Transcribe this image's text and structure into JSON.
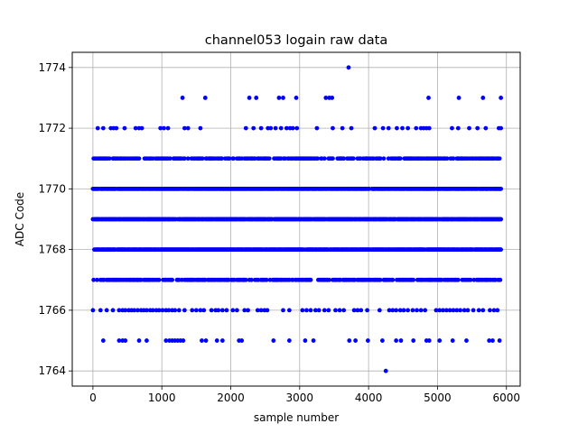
{
  "chart_data": {
    "type": "scatter",
    "title": "channel053 logain raw data",
    "xlabel": "sample number",
    "ylabel": "ADC Code",
    "xlim": [
      -300,
      6200
    ],
    "ylim": [
      1763.5,
      1774.5
    ],
    "xticks": [
      0,
      1000,
      2000,
      3000,
      4000,
      5000,
      6000
    ],
    "yticks": [
      1764,
      1766,
      1768,
      1770,
      1772,
      1774
    ],
    "grid": true,
    "marker_color": "#0000ff",
    "sample_count": 5920,
    "series": [
      {
        "levels": [
          {
            "value": 1767,
            "x": []
          },
          {
            "value": 1768,
            "x": []
          },
          {
            "value": 1769,
            "x": []
          },
          {
            "value": 1770,
            "x": []
          },
          {
            "value": 1771,
            "x": []
          }
        ],
        "points": [
          {
            "x": 3710,
            "y": 1774
          },
          {
            "x": 1300,
            "y": 1773
          },
          {
            "x": 1630,
            "y": 1773
          },
          {
            "x": 2270,
            "y": 1773
          },
          {
            "x": 2370,
            "y": 1773
          },
          {
            "x": 2700,
            "y": 1773
          },
          {
            "x": 2760,
            "y": 1773
          },
          {
            "x": 2950,
            "y": 1773
          },
          {
            "x": 3380,
            "y": 1773
          },
          {
            "x": 3430,
            "y": 1773
          },
          {
            "x": 3470,
            "y": 1773
          },
          {
            "x": 4870,
            "y": 1773
          },
          {
            "x": 5310,
            "y": 1773
          },
          {
            "x": 5660,
            "y": 1773
          },
          {
            "x": 5920,
            "y": 1773
          },
          {
            "x": 70,
            "y": 1772
          },
          {
            "x": 150,
            "y": 1772
          },
          {
            "x": 260,
            "y": 1772
          },
          {
            "x": 300,
            "y": 1772
          },
          {
            "x": 340,
            "y": 1772
          },
          {
            "x": 460,
            "y": 1772
          },
          {
            "x": 620,
            "y": 1772
          },
          {
            "x": 670,
            "y": 1772
          },
          {
            "x": 710,
            "y": 1772
          },
          {
            "x": 980,
            "y": 1772
          },
          {
            "x": 1030,
            "y": 1772
          },
          {
            "x": 1090,
            "y": 1772
          },
          {
            "x": 1330,
            "y": 1772
          },
          {
            "x": 1380,
            "y": 1772
          },
          {
            "x": 1560,
            "y": 1772
          },
          {
            "x": 2220,
            "y": 1772
          },
          {
            "x": 2330,
            "y": 1772
          },
          {
            "x": 2440,
            "y": 1772
          },
          {
            "x": 2540,
            "y": 1772
          },
          {
            "x": 2580,
            "y": 1772
          },
          {
            "x": 2650,
            "y": 1772
          },
          {
            "x": 2730,
            "y": 1772
          },
          {
            "x": 2810,
            "y": 1772
          },
          {
            "x": 2860,
            "y": 1772
          },
          {
            "x": 2900,
            "y": 1772
          },
          {
            "x": 2960,
            "y": 1772
          },
          {
            "x": 3250,
            "y": 1772
          },
          {
            "x": 3480,
            "y": 1772
          },
          {
            "x": 3620,
            "y": 1772
          },
          {
            "x": 3750,
            "y": 1772
          },
          {
            "x": 4090,
            "y": 1772
          },
          {
            "x": 4210,
            "y": 1772
          },
          {
            "x": 4290,
            "y": 1772
          },
          {
            "x": 4410,
            "y": 1772
          },
          {
            "x": 4490,
            "y": 1772
          },
          {
            "x": 4570,
            "y": 1772
          },
          {
            "x": 4690,
            "y": 1772
          },
          {
            "x": 4760,
            "y": 1772
          },
          {
            "x": 4800,
            "y": 1772
          },
          {
            "x": 4840,
            "y": 1772
          },
          {
            "x": 4880,
            "y": 1772
          },
          {
            "x": 5210,
            "y": 1772
          },
          {
            "x": 5300,
            "y": 1772
          },
          {
            "x": 5460,
            "y": 1772
          },
          {
            "x": 5580,
            "y": 1772
          },
          {
            "x": 5700,
            "y": 1772
          },
          {
            "x": 5890,
            "y": 1772
          },
          {
            "x": 5920,
            "y": 1772
          },
          {
            "x": 0,
            "y": 1766
          },
          {
            "x": 110,
            "y": 1766
          },
          {
            "x": 200,
            "y": 1766
          },
          {
            "x": 290,
            "y": 1766
          },
          {
            "x": 380,
            "y": 1766
          },
          {
            "x": 430,
            "y": 1766
          },
          {
            "x": 470,
            "y": 1766
          },
          {
            "x": 520,
            "y": 1766
          },
          {
            "x": 560,
            "y": 1766
          },
          {
            "x": 600,
            "y": 1766
          },
          {
            "x": 650,
            "y": 1766
          },
          {
            "x": 700,
            "y": 1766
          },
          {
            "x": 740,
            "y": 1766
          },
          {
            "x": 780,
            "y": 1766
          },
          {
            "x": 830,
            "y": 1766
          },
          {
            "x": 870,
            "y": 1766
          },
          {
            "x": 920,
            "y": 1766
          },
          {
            "x": 960,
            "y": 1766
          },
          {
            "x": 1010,
            "y": 1766
          },
          {
            "x": 1060,
            "y": 1766
          },
          {
            "x": 1100,
            "y": 1766
          },
          {
            "x": 1150,
            "y": 1766
          },
          {
            "x": 1190,
            "y": 1766
          },
          {
            "x": 1250,
            "y": 1766
          },
          {
            "x": 1330,
            "y": 1766
          },
          {
            "x": 1440,
            "y": 1766
          },
          {
            "x": 1500,
            "y": 1766
          },
          {
            "x": 1560,
            "y": 1766
          },
          {
            "x": 1610,
            "y": 1766
          },
          {
            "x": 1720,
            "y": 1766
          },
          {
            "x": 1780,
            "y": 1766
          },
          {
            "x": 1820,
            "y": 1766
          },
          {
            "x": 1880,
            "y": 1766
          },
          {
            "x": 1940,
            "y": 1766
          },
          {
            "x": 2030,
            "y": 1766
          },
          {
            "x": 2090,
            "y": 1766
          },
          {
            "x": 2200,
            "y": 1766
          },
          {
            "x": 2250,
            "y": 1766
          },
          {
            "x": 2390,
            "y": 1766
          },
          {
            "x": 2440,
            "y": 1766
          },
          {
            "x": 2490,
            "y": 1766
          },
          {
            "x": 2530,
            "y": 1766
          },
          {
            "x": 2760,
            "y": 1766
          },
          {
            "x": 2850,
            "y": 1766
          },
          {
            "x": 3040,
            "y": 1766
          },
          {
            "x": 3100,
            "y": 1766
          },
          {
            "x": 3160,
            "y": 1766
          },
          {
            "x": 3230,
            "y": 1766
          },
          {
            "x": 3280,
            "y": 1766
          },
          {
            "x": 3360,
            "y": 1766
          },
          {
            "x": 3420,
            "y": 1766
          },
          {
            "x": 3520,
            "y": 1766
          },
          {
            "x": 3580,
            "y": 1766
          },
          {
            "x": 3640,
            "y": 1766
          },
          {
            "x": 3790,
            "y": 1766
          },
          {
            "x": 3840,
            "y": 1766
          },
          {
            "x": 3890,
            "y": 1766
          },
          {
            "x": 3980,
            "y": 1766
          },
          {
            "x": 4160,
            "y": 1766
          },
          {
            "x": 4300,
            "y": 1766
          },
          {
            "x": 4350,
            "y": 1766
          },
          {
            "x": 4400,
            "y": 1766
          },
          {
            "x": 4460,
            "y": 1766
          },
          {
            "x": 4510,
            "y": 1766
          },
          {
            "x": 4570,
            "y": 1766
          },
          {
            "x": 4640,
            "y": 1766
          },
          {
            "x": 4700,
            "y": 1766
          },
          {
            "x": 4760,
            "y": 1766
          },
          {
            "x": 4820,
            "y": 1766
          },
          {
            "x": 4980,
            "y": 1766
          },
          {
            "x": 5030,
            "y": 1766
          },
          {
            "x": 5080,
            "y": 1766
          },
          {
            "x": 5130,
            "y": 1766
          },
          {
            "x": 5180,
            "y": 1766
          },
          {
            "x": 5230,
            "y": 1766
          },
          {
            "x": 5280,
            "y": 1766
          },
          {
            "x": 5330,
            "y": 1766
          },
          {
            "x": 5390,
            "y": 1766
          },
          {
            "x": 5440,
            "y": 1766
          },
          {
            "x": 5520,
            "y": 1766
          },
          {
            "x": 5600,
            "y": 1766
          },
          {
            "x": 5660,
            "y": 1766
          },
          {
            "x": 5760,
            "y": 1766
          },
          {
            "x": 5820,
            "y": 1766
          },
          {
            "x": 5870,
            "y": 1766
          },
          {
            "x": 150,
            "y": 1765
          },
          {
            "x": 380,
            "y": 1765
          },
          {
            "x": 430,
            "y": 1765
          },
          {
            "x": 470,
            "y": 1765
          },
          {
            "x": 670,
            "y": 1765
          },
          {
            "x": 780,
            "y": 1765
          },
          {
            "x": 1060,
            "y": 1765
          },
          {
            "x": 1110,
            "y": 1765
          },
          {
            "x": 1150,
            "y": 1765
          },
          {
            "x": 1190,
            "y": 1765
          },
          {
            "x": 1230,
            "y": 1765
          },
          {
            "x": 1270,
            "y": 1765
          },
          {
            "x": 1310,
            "y": 1765
          },
          {
            "x": 1580,
            "y": 1765
          },
          {
            "x": 1640,
            "y": 1765
          },
          {
            "x": 1800,
            "y": 1765
          },
          {
            "x": 1880,
            "y": 1765
          },
          {
            "x": 2120,
            "y": 1765
          },
          {
            "x": 2160,
            "y": 1765
          },
          {
            "x": 2620,
            "y": 1765
          },
          {
            "x": 2850,
            "y": 1765
          },
          {
            "x": 3080,
            "y": 1765
          },
          {
            "x": 3200,
            "y": 1765
          },
          {
            "x": 3720,
            "y": 1765
          },
          {
            "x": 3810,
            "y": 1765
          },
          {
            "x": 3990,
            "y": 1765
          },
          {
            "x": 4200,
            "y": 1765
          },
          {
            "x": 4400,
            "y": 1765
          },
          {
            "x": 4470,
            "y": 1765
          },
          {
            "x": 4650,
            "y": 1765
          },
          {
            "x": 4840,
            "y": 1765
          },
          {
            "x": 4880,
            "y": 1765
          },
          {
            "x": 5030,
            "y": 1765
          },
          {
            "x": 5220,
            "y": 1765
          },
          {
            "x": 5420,
            "y": 1765
          },
          {
            "x": 5750,
            "y": 1765
          },
          {
            "x": 5800,
            "y": 1765
          },
          {
            "x": 5900,
            "y": 1765
          },
          {
            "x": 4250,
            "y": 1764
          }
        ]
      }
    ]
  }
}
